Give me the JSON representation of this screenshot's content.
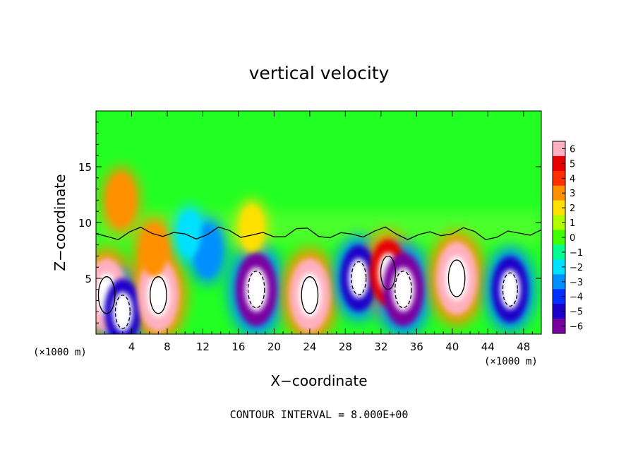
{
  "chart_data": {
    "type": "heatmap",
    "title": "vertical velocity",
    "xlabel": "X−coordinate",
    "ylabel": "Z−coordinate",
    "x_scale_label_left": "(×1000 m)",
    "x_scale_label_right": "(×1000 m)",
    "footer": "CONTOUR INTERVAL = 8.000E+00",
    "xlim": [
      0,
      50
    ],
    "ylim": [
      0,
      20
    ],
    "x_ticks": [
      "4",
      "8",
      "12",
      "16",
      "20",
      "24",
      "28",
      "32",
      "36",
      "40",
      "44",
      "48"
    ],
    "y_ticks": [
      "5",
      "10",
      "15"
    ],
    "colorbar_ticks": [
      "6",
      "5",
      "4",
      "3",
      "2",
      "1",
      "0",
      "−1",
      "−2",
      "−3",
      "−4",
      "−5",
      "−6"
    ],
    "colorbar_range": [
      -6,
      6
    ],
    "colors": [
      "#7a00a0",
      "#1a00c8",
      "#0030ff",
      "#0090ff",
      "#00e0ff",
      "#00ff90",
      "#40ff00",
      "#b0ff00",
      "#ffe000",
      "#ff9000",
      "#ff3000",
      "#e80000",
      "#ffb0c0"
    ],
    "cells": [
      {
        "x": 1.2,
        "z": 3.5,
        "w": 6
      },
      {
        "x": 3.0,
        "z": 2.0,
        "w": -5
      },
      {
        "x": 7.0,
        "z": 3.5,
        "w": 6
      },
      {
        "x": 6.5,
        "z": 7.5,
        "w": 3
      },
      {
        "x": 2.8,
        "z": 12.0,
        "w": 3
      },
      {
        "x": 12.5,
        "z": 7.5,
        "w": -3
      },
      {
        "x": 18.0,
        "z": 4.0,
        "w": -6
      },
      {
        "x": 24.0,
        "z": 3.5,
        "w": 6
      },
      {
        "x": 29.5,
        "z": 5.0,
        "w": -5
      },
      {
        "x": 32.8,
        "z": 5.5,
        "w": 5
      },
      {
        "x": 34.5,
        "z": 4.0,
        "w": -6
      },
      {
        "x": 40.5,
        "z": 5.0,
        "w": 6
      },
      {
        "x": 46.5,
        "z": 4.0,
        "w": -5
      },
      {
        "x": 10.5,
        "z": 9.0,
        "w": -2
      },
      {
        "x": 17.5,
        "z": 9.5,
        "w": 2
      }
    ]
  }
}
